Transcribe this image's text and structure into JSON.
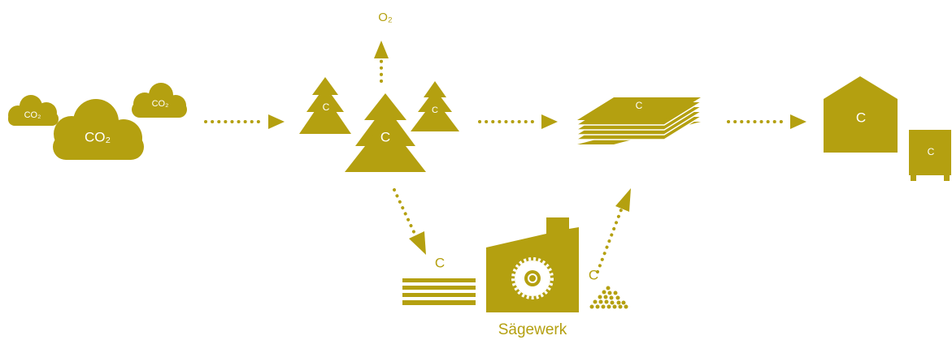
{
  "clouds": [
    {
      "label": "CO₂"
    },
    {
      "label": "CO₂"
    },
    {
      "label": "CO₂"
    }
  ],
  "oxygen": {
    "label": "O₂"
  },
  "trees": [
    {
      "label": "C"
    },
    {
      "label": "C"
    },
    {
      "label": "C"
    }
  ],
  "lumber_stack": {
    "label": "C"
  },
  "house": {
    "label": "C"
  },
  "container": {
    "label": "C"
  },
  "sawn_boards": {
    "label": "C"
  },
  "sawdust": {
    "label": "C"
  },
  "sawmill": {
    "label": "Sägewerk"
  }
}
